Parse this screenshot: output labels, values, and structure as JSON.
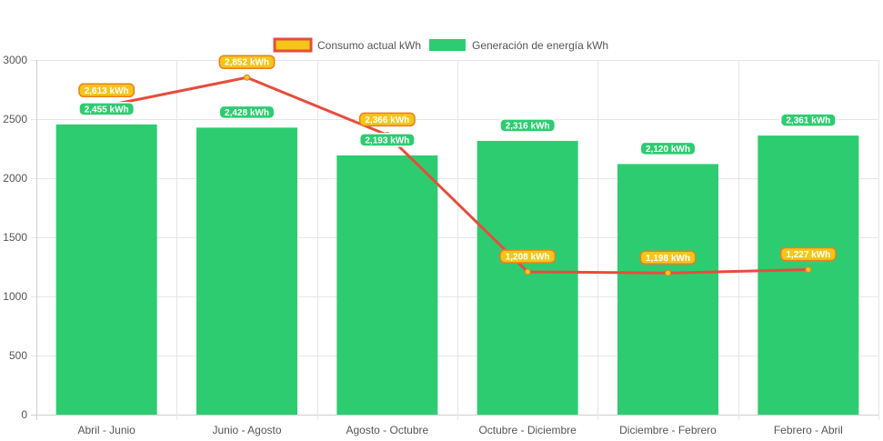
{
  "chart_data": {
    "type": "bar",
    "categories": [
      "Abril - Junio",
      "Junio - Agosto",
      "Agosto - Octubre",
      "Octubre - Diciembre",
      "Diciembre - Febrero",
      "Febrero - Abril"
    ],
    "series": [
      {
        "name": "Consumo actual kWh",
        "render": "line",
        "values": [
          2613,
          2852,
          2366,
          1208,
          1198,
          1227
        ],
        "labels": [
          "2,613 kWh",
          "2,852 kWh",
          "2,366 kWh",
          "1,208 kWh",
          "1,198 kWh",
          "1,227 kWh"
        ],
        "color": "#e74c3c",
        "fill": "#f5c518"
      },
      {
        "name": "Generación de energía kWh",
        "render": "bar",
        "values": [
          2455,
          2428,
          2193,
          2316,
          2120,
          2361
        ],
        "labels": [
          "2,455 kWh",
          "2,428 kWh",
          "2,193 kWh",
          "2,316 kWh",
          "2,120 kWh",
          "2,361 kWh"
        ],
        "color": "#2ecc71"
      }
    ],
    "yticks": [
      0,
      500,
      1000,
      1500,
      2000,
      2500,
      3000
    ],
    "ylim": [
      0,
      3000
    ],
    "grid": true,
    "legend_position": "top-center",
    "title": "",
    "xlabel": "",
    "ylabel": ""
  }
}
